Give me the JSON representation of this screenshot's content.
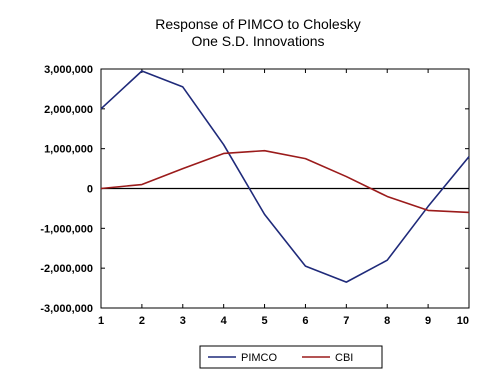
{
  "chart_data": {
    "type": "line",
    "title_lines": [
      "Response of PIMCO to Cholesky",
      "One S.D. Innovations"
    ],
    "xlabel": "",
    "ylabel": "",
    "x": [
      1,
      2,
      3,
      4,
      5,
      6,
      7,
      8,
      9,
      10
    ],
    "xlim": [
      1,
      10
    ],
    "ylim": [
      -3000000,
      3000000
    ],
    "yticks": [
      3000000,
      2000000,
      1000000,
      0,
      -1000000,
      -2000000,
      -3000000
    ],
    "ytick_labels": [
      "3,000,000",
      "2,000,000",
      "1,000,000",
      "0",
      "-1,000,000",
      "-2,000,000",
      "-3,000,000"
    ],
    "xtick_labels": [
      "1",
      "2",
      "3",
      "4",
      "5",
      "6",
      "7",
      "8",
      "9",
      "10"
    ],
    "zero_line": true,
    "grid": false,
    "legend_position": "bottom-center",
    "series": [
      {
        "name": "PIMCO",
        "color": "#1f2a7a",
        "values": [
          2000000,
          2950000,
          2550000,
          1100000,
          -650000,
          -1950000,
          -2350000,
          -1800000,
          -450000,
          800000
        ]
      },
      {
        "name": "CBI",
        "color": "#9b1b1b",
        "values": [
          0,
          100000,
          500000,
          880000,
          950000,
          750000,
          300000,
          -200000,
          -550000,
          -600000
        ]
      }
    ]
  }
}
